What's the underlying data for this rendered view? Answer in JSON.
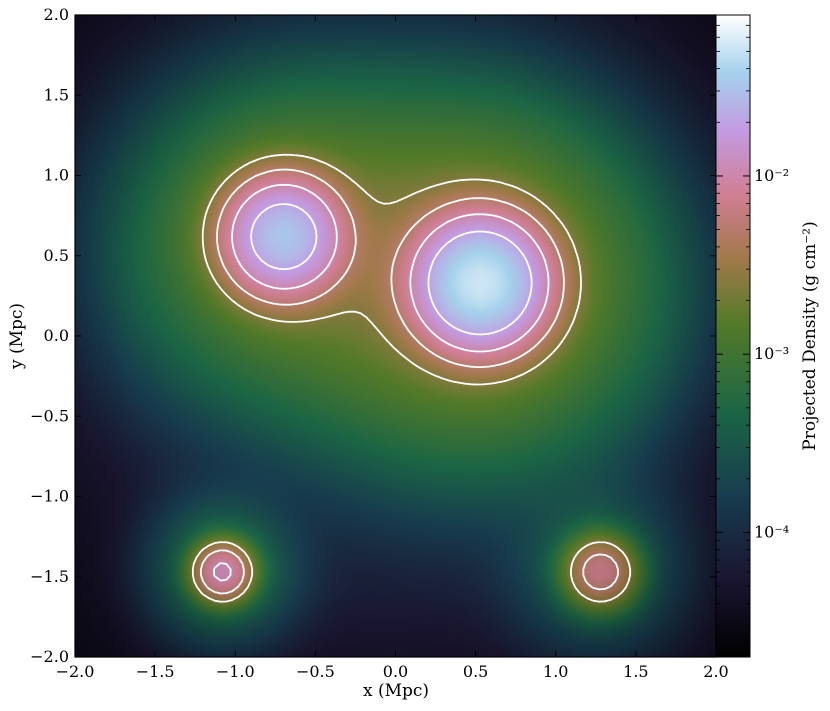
{
  "chart_data": {
    "type": "heatmap",
    "title": "",
    "xlabel": "x (Mpc)",
    "ylabel": "y (Mpc)",
    "xlim": [
      -2.0,
      2.0
    ],
    "ylim": [
      -2.0,
      2.0
    ],
    "x_ticks": [
      -2.0,
      -1.5,
      -1.0,
      -0.5,
      0.0,
      0.5,
      1.0,
      1.5,
      2.0
    ],
    "y_ticks": [
      -2.0,
      -1.5,
      -1.0,
      -0.5,
      0.0,
      0.5,
      1.0,
      1.5,
      2.0
    ],
    "x_tick_labels": [
      "−2.0",
      "−1.5",
      "−1.0",
      "−0.5",
      "0.0",
      "0.5",
      "1.0",
      "1.5",
      "2.0"
    ],
    "y_tick_labels": [
      "−2.0",
      "−1.5",
      "−1.0",
      "−0.5",
      "0.0",
      "0.5",
      "1.0",
      "1.5",
      "2.0"
    ],
    "grid": false,
    "colormap": "cubehelix",
    "colorbar": {
      "label": "Projected Density (g cm⁻²)",
      "scale": "log",
      "range": [
        2e-05,
        0.08
      ],
      "ticks": [
        0.0001,
        0.001,
        0.01
      ],
      "tick_labels": [
        "10⁻⁴",
        "10⁻³",
        "10⁻²"
      ]
    },
    "clumps": [
      {
        "x": -0.7,
        "y": 0.62,
        "peak": 0.03,
        "sigma": 0.2
      },
      {
        "x": 0.53,
        "y": 0.33,
        "peak": 0.05,
        "sigma": 0.22
      },
      {
        "x": -1.08,
        "y": -1.47,
        "peak": 0.011,
        "sigma": 0.1
      },
      {
        "x": 1.28,
        "y": -1.47,
        "peak": 0.007,
        "sigma": 0.12
      }
    ],
    "contours": {
      "color": "#ffffff",
      "levels": [
        0.0025,
        0.005,
        0.01,
        0.02
      ]
    }
  }
}
